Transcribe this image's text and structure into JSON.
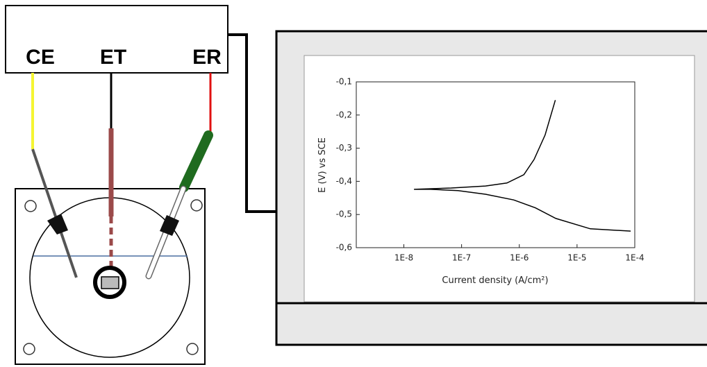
{
  "labels": {
    "ce": "CE",
    "et": "ET",
    "er": "ER"
  },
  "chart_data": {
    "type": "line",
    "xlabel": "Current density (A/cm²)",
    "ylabel": "E (V) vs SCE",
    "log_x": true,
    "x": [
      8.5e-05,
      1.7e-05,
      4.3e-06,
      1.9e-06,
      8e-07,
      2.6e-07,
      8.7e-08,
      2.9e-08,
      1.5e-08,
      6.6e-08,
      2.6e-07,
      6.1e-07,
      1.2e-06,
      1.8e-06,
      2.8e-06,
      4.2e-06
    ],
    "series": [
      {
        "color": "#000000",
        "values": [
          -0.55,
          -0.543,
          -0.512,
          -0.48,
          -0.456,
          -0.439,
          -0.428,
          -0.424,
          -0.424,
          -0.42,
          -0.414,
          -0.405,
          -0.38,
          -0.334,
          -0.26,
          -0.155
        ]
      }
    ],
    "xlim": [
      1.5e-09,
      0.0001
    ],
    "ylim": [
      -0.6,
      -0.1
    ],
    "xticks": [
      {
        "value": 1e-08,
        "label": "1E-8"
      },
      {
        "value": 1e-07,
        "label": "1E-7"
      },
      {
        "value": 1e-06,
        "label": "1E-6"
      },
      {
        "value": 1e-05,
        "label": "1E-5"
      },
      {
        "value": 0.0001,
        "label": "1E-4"
      }
    ],
    "yticks": [
      {
        "value": -0.6,
        "label": "-0,6"
      },
      {
        "value": -0.5,
        "label": "-0,5"
      },
      {
        "value": -0.4,
        "label": "-0,4"
      },
      {
        "value": -0.3,
        "label": "-0,3"
      },
      {
        "value": -0.2,
        "label": "-0,2"
      },
      {
        "value": -0.1,
        "label": "-0,1"
      }
    ]
  }
}
